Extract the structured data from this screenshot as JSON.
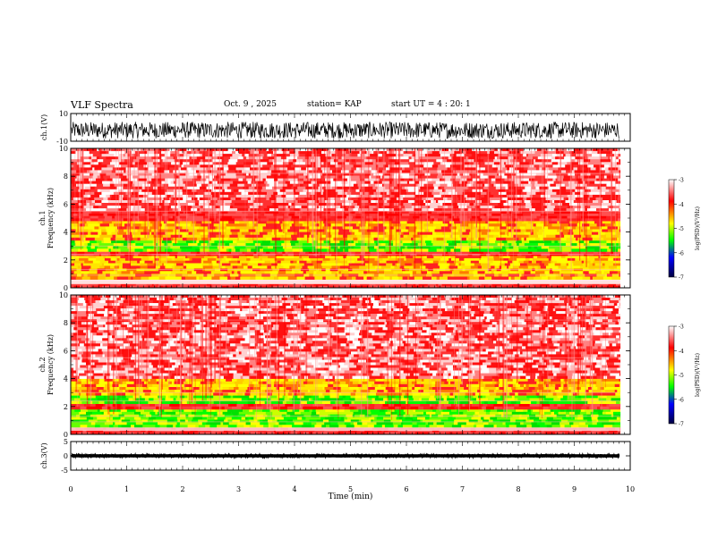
{
  "header": {
    "title": "VLF Spectra",
    "date": "Oct. 9 , 2025",
    "station": "station= KAP",
    "start": "start UT = 4 : 20: 1"
  },
  "colors": {
    "background": "#ffffff",
    "axis": "#000000",
    "spec_high": "#ff2020",
    "spec_mid": "#ffff00",
    "spec_low": "#00ff00"
  },
  "chart_data": [
    {
      "type": "line",
      "name": "ch1-waveform",
      "ylabel": "ch.1(V)",
      "ylim": [
        -10,
        10
      ],
      "yticks": [
        "10",
        "-10"
      ],
      "xlim": [
        0,
        10
      ],
      "amplitude_range": [
        -8,
        4
      ]
    },
    {
      "type": "heatmap",
      "name": "ch1-spectrogram",
      "ylabel": "ch.1 Frequency (kHz)",
      "ylim": [
        0,
        10
      ],
      "yticks": [
        "0",
        "2",
        "4",
        "6",
        "8",
        "10"
      ],
      "xlim": [
        0,
        10
      ],
      "data_end_min": 9.82,
      "bands_khz": [
        {
          "from": 0.0,
          "to": 0.3,
          "level": "high"
        },
        {
          "from": 0.6,
          "to": 1.4,
          "level": "mid"
        },
        {
          "from": 1.4,
          "to": 2.3,
          "level": "mid"
        },
        {
          "from": 2.3,
          "to": 2.6,
          "level": "high"
        },
        {
          "from": 2.6,
          "to": 3.4,
          "level": "low"
        },
        {
          "from": 3.4,
          "to": 4.8,
          "level": "mid"
        },
        {
          "from": 4.8,
          "to": 5.5,
          "level": "high"
        },
        {
          "from": 5.5,
          "to": 10.0,
          "level": "speckle"
        }
      ],
      "colorbar": {
        "label": "log(PSD)(V²/Hz)",
        "range": [
          -7,
          -3
        ],
        "ticks": [
          "-3",
          "-4",
          "-5",
          "-6",
          "-7"
        ]
      }
    },
    {
      "type": "heatmap",
      "name": "ch2-spectrogram",
      "ylabel": "ch.2 Frequency (kHz)",
      "ylim": [
        0,
        10
      ],
      "yticks": [
        "0",
        "2",
        "4",
        "6",
        "8",
        "10"
      ],
      "xlim": [
        0,
        10
      ],
      "data_end_min": 9.82,
      "bands_khz": [
        {
          "from": 0.0,
          "to": 0.5,
          "level": "high"
        },
        {
          "from": 0.5,
          "to": 1.8,
          "level": "low"
        },
        {
          "from": 1.8,
          "to": 2.2,
          "level": "high"
        },
        {
          "from": 2.2,
          "to": 2.8,
          "level": "low"
        },
        {
          "from": 2.8,
          "to": 4.0,
          "level": "mid"
        },
        {
          "from": 4.0,
          "to": 10.0,
          "level": "speckle"
        }
      ],
      "colorbar": {
        "label": "log(PSD)(V²/Hz)",
        "range": [
          -7,
          -3
        ],
        "ticks": [
          "-3",
          "-4",
          "-5",
          "-6",
          "-7"
        ]
      }
    },
    {
      "type": "line",
      "name": "ch3-waveform",
      "ylabel": "ch.3(V)",
      "ylim": [
        -5,
        5
      ],
      "yticks": [
        "5",
        "0",
        "-5"
      ],
      "xlim": [
        0,
        10
      ],
      "amplitude_range": [
        -0.6,
        0.6
      ]
    }
  ],
  "x_axis": {
    "label": "Time (min)",
    "ticks": [
      "0",
      "1",
      "2",
      "3",
      "4",
      "5",
      "6",
      "7",
      "8",
      "9",
      "10"
    ]
  }
}
